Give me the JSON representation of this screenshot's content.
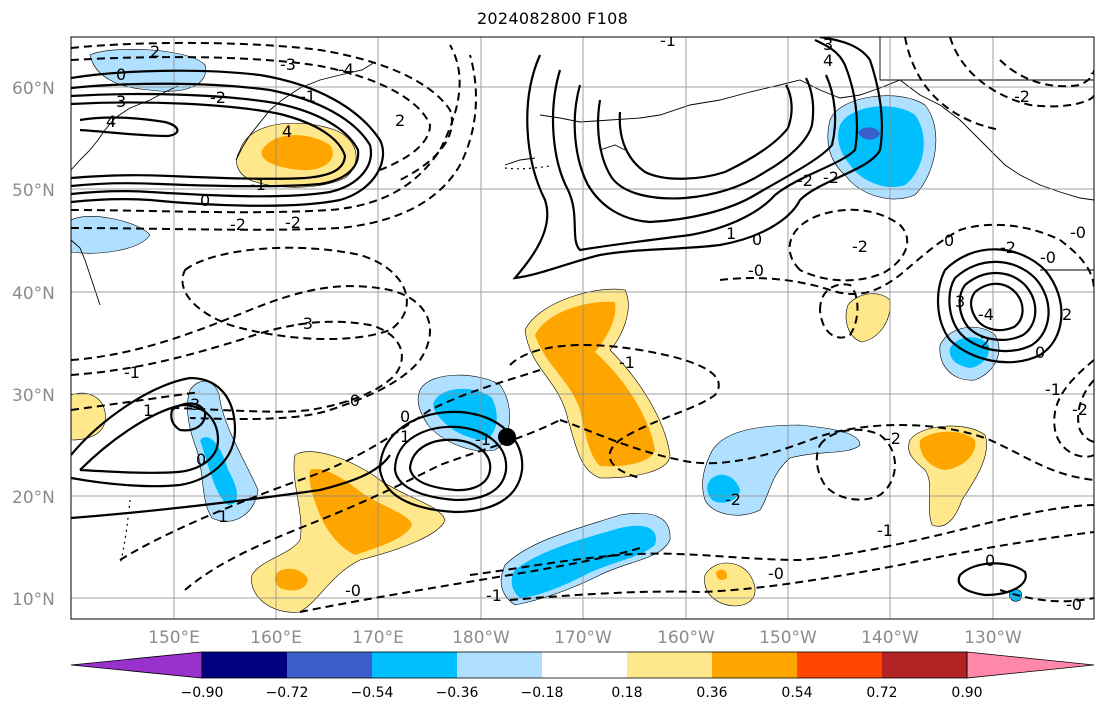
{
  "title": "2024082800 F108",
  "lat_labels": [
    "60°N",
    "50°N",
    "40°N",
    "30°N",
    "20°N",
    "10°N"
  ],
  "lon_labels": [
    "150°E",
    "160°E",
    "170°E",
    "180°W",
    "170°W",
    "160°W",
    "150°W",
    "140°W",
    "130°W"
  ],
  "colorbar": {
    "colors": [
      "#9932cc",
      "#000080",
      "#3a5fcd",
      "#00bfff",
      "#b0e0ff",
      "#ffffff",
      "#ffe88c",
      "#ffa500",
      "#ff4500",
      "#b22222",
      "#ff88aa"
    ],
    "tick_labels": [
      "−0.90",
      "−0.72",
      "−0.54",
      "−0.36",
      "−0.18",
      "0.18",
      "0.36",
      "0.54",
      "0.72",
      "0.90"
    ]
  },
  "contour_labels": [
    "2",
    "0",
    "3",
    "4",
    "-3",
    "-4",
    "-2",
    "4",
    "-1",
    "0",
    "-2",
    "-2",
    "-3",
    "-1",
    "1",
    "3",
    "0",
    "1",
    "-0",
    "0",
    "1",
    "-1",
    "-0",
    "-1",
    "-0",
    "3",
    "4",
    "-2",
    "1",
    "-0",
    "0",
    "-2",
    "-2",
    "-2",
    "0",
    "-2",
    "-0",
    "3",
    "-4",
    "2",
    "0",
    "2",
    "-1",
    "-2",
    "-2",
    "-1",
    "-0",
    "0",
    "-0",
    "-1",
    "-2",
    "-3",
    "-1",
    "2",
    "-1"
  ],
  "marker": "track-point"
}
